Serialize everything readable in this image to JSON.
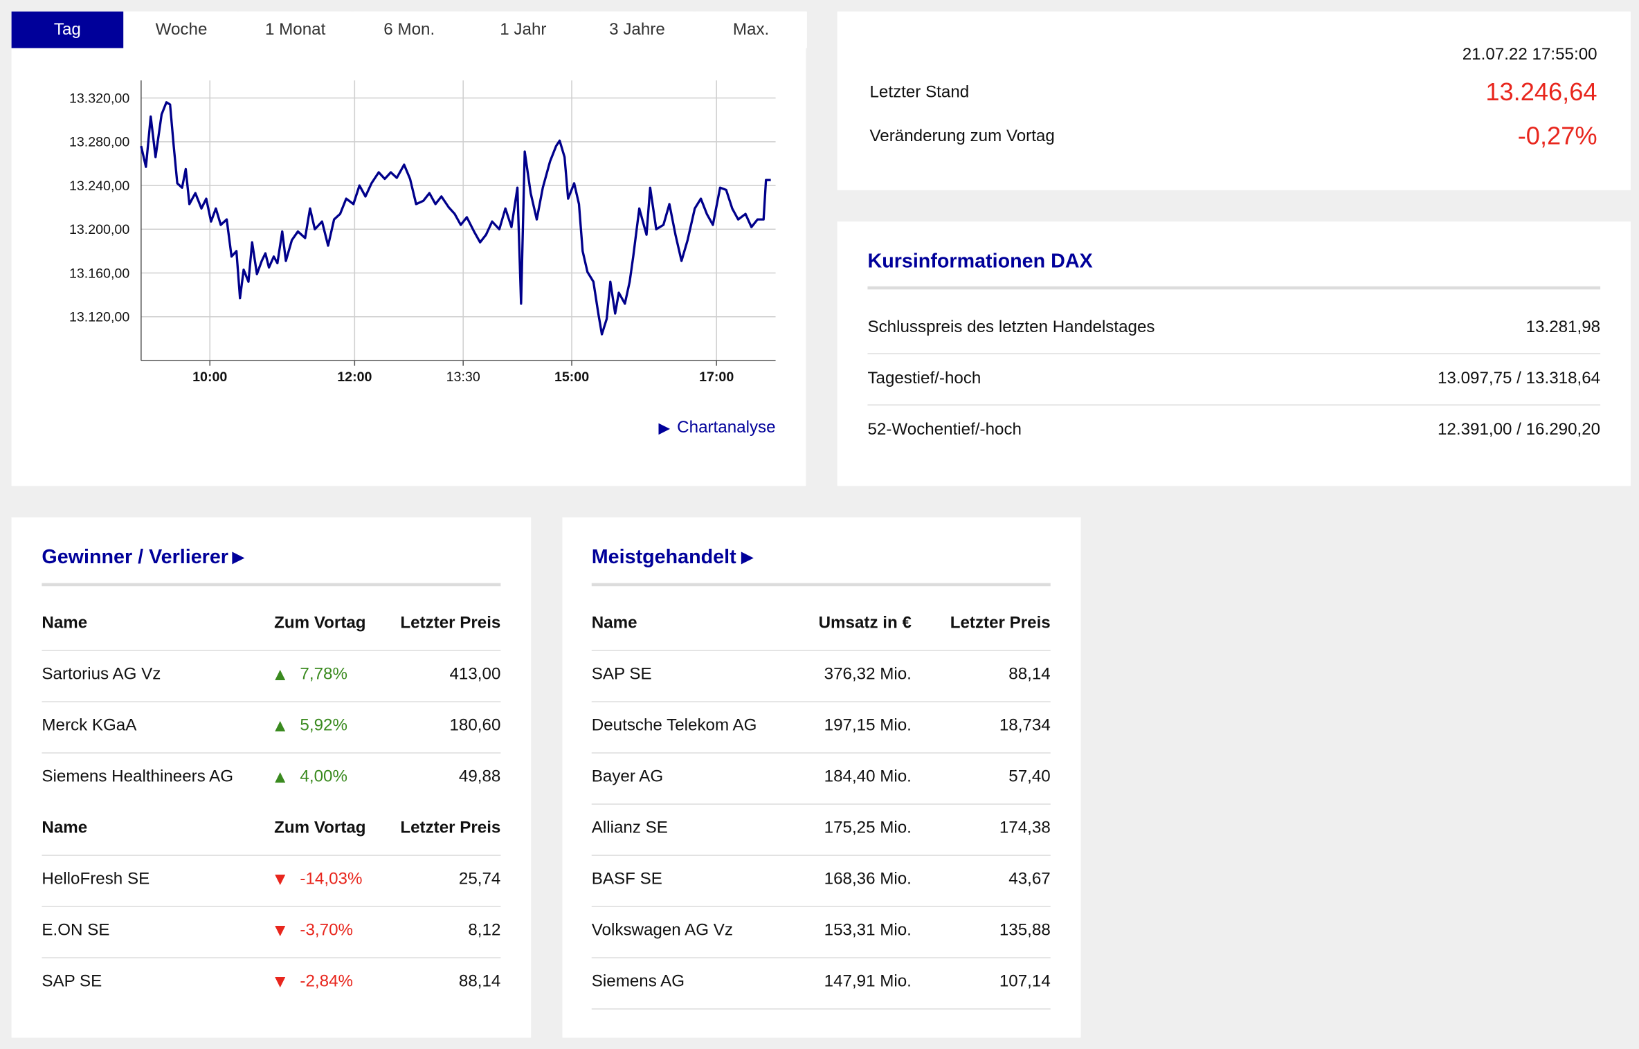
{
  "tabs": [
    "Tag",
    "Woche",
    "1 Monat",
    "6 Mon.",
    "1 Jahr",
    "3 Jahre",
    "Max."
  ],
  "active_tab": 0,
  "chart_data": {
    "type": "line",
    "color": "#00008b",
    "x": [
      543,
      547,
      551,
      555,
      560,
      564,
      567,
      570,
      573,
      577,
      580,
      583,
      588,
      593,
      597,
      601,
      605,
      609,
      614,
      618,
      622,
      625,
      628,
      632,
      635,
      639,
      643,
      646,
      649,
      653,
      656,
      660,
      663,
      668,
      673,
      679,
      683,
      687,
      693,
      698,
      703,
      708,
      713,
      719,
      724,
      729,
      734,
      740,
      745,
      750,
      755,
      761,
      766,
      771,
      777,
      782,
      787,
      792,
      798,
      803,
      808,
      813,
      819,
      824,
      829,
      834,
      840,
      845,
      850,
      855,
      858,
      861,
      866,
      871,
      876,
      882,
      887,
      890,
      894,
      897,
      902,
      906,
      909,
      913,
      918,
      922,
      925,
      929,
      932,
      936,
      939,
      944,
      948,
      951,
      956,
      962,
      965,
      970,
      976,
      981,
      986,
      991,
      996,
      1002,
      1007,
      1012,
      1017,
      1023,
      1028,
      1033,
      1038,
      1044,
      1049,
      1054,
      1059,
      1061,
      1065
    ],
    "values": [
      13276,
      13257,
      13303,
      13266,
      13305,
      13316,
      13314,
      13276,
      13242,
      13238,
      13255,
      13223,
      13233,
      13219,
      13228,
      13207,
      13219,
      13204,
      13209,
      13175,
      13180,
      13137,
      13163,
      13152,
      13188,
      13159,
      13171,
      13178,
      13165,
      13175,
      13169,
      13198,
      13171,
      13190,
      13198,
      13192,
      13219,
      13200,
      13207,
      13185,
      13209,
      13214,
      13228,
      13223,
      13240,
      13230,
      13242,
      13252,
      13246,
      13252,
      13247,
      13259,
      13246,
      13223,
      13226,
      13233,
      13223,
      13230,
      13220,
      13214,
      13204,
      13211,
      13198,
      13188,
      13195,
      13207,
      13200,
      13219,
      13202,
      13238,
      13132,
      13271,
      13233,
      13209,
      13238,
      13262,
      13276,
      13281,
      13266,
      13228,
      13242,
      13223,
      13180,
      13161,
      13152,
      13123,
      13104,
      13118,
      13152,
      13123,
      13142,
      13132,
      13152,
      13175,
      13219,
      13195,
      13238,
      13200,
      13204,
      13223,
      13195,
      13171,
      13190,
      13219,
      13228,
      13214,
      13204,
      13238,
      13236,
      13219,
      13209,
      13214,
      13202,
      13209,
      13209,
      13245,
      13245
    ],
    "xlim": [
      543,
      1069
    ],
    "xticks": [
      {
        "value": 600,
        "label": "10:00"
      },
      {
        "value": 720,
        "label": "12:00"
      },
      {
        "value": 810,
        "label": "13:30"
      },
      {
        "value": 900,
        "label": "15:00"
      },
      {
        "value": 1020,
        "label": "17:00"
      }
    ],
    "ylim": [
      13080,
      13336
    ],
    "yticks": [
      {
        "value": 13120,
        "label": "13.120,00"
      },
      {
        "value": 13160,
        "label": "13.160,00"
      },
      {
        "value": 13200,
        "label": "13.200,00"
      },
      {
        "value": 13240,
        "label": "13.240,00"
      },
      {
        "value": 13280,
        "label": "13.280,00"
      },
      {
        "value": 13320,
        "label": "13.320,00"
      }
    ],
    "grid": true
  },
  "chart_link": "Chartanalyse",
  "quote": {
    "timestamp": "21.07.22 17:55:00",
    "last_label": "Letzter Stand",
    "last_value": "13.246,64",
    "change_label": "Veränderung zum Vortag",
    "change_value": "-0,27%"
  },
  "price_info": {
    "title": "Kursinformationen DAX",
    "rows": [
      [
        "Schlusspreis des letzten Handelstages",
        "13.281,98"
      ],
      [
        "Tagestief/-hoch",
        "13.097,75 / 13.318,64"
      ],
      [
        "52-Wochentief/-hoch",
        "12.391,00 / 16.290,20"
      ]
    ]
  },
  "movers": {
    "title": "Gewinner / Verlierer",
    "gainers": {
      "header": [
        "Name",
        "Zum Vortag",
        "Letzter Preis"
      ],
      "rows": [
        [
          "Sartorius AG Vz",
          "7,78%",
          "413,00"
        ],
        [
          "Merck KGaA",
          "5,92%",
          "180,60"
        ],
        [
          "Siemens Healthineers AG",
          "4,00%",
          "49,88"
        ]
      ]
    },
    "losers": {
      "header": [
        "Name",
        "Zum Vortag",
        "Letzter Preis"
      ],
      "rows": [
        [
          "HelloFresh SE",
          "-14,03%",
          "25,74"
        ],
        [
          "E.ON SE",
          "-3,70%",
          "8,12"
        ],
        [
          "SAP SE",
          "-2,84%",
          "88,14"
        ]
      ]
    }
  },
  "most_traded": {
    "title": "Meistgehandelt",
    "header": [
      "Name",
      "Umsatz in €",
      "Letzter Preis"
    ],
    "rows": [
      [
        "SAP SE",
        "376,32 Mio.",
        "88,14"
      ],
      [
        "Deutsche Telekom AG",
        "197,15 Mio.",
        "18,734"
      ],
      [
        "Bayer AG",
        "184,40 Mio.",
        "57,40"
      ],
      [
        "Allianz SE",
        "175,25 Mio.",
        "174,38"
      ],
      [
        "BASF SE",
        "168,36 Mio.",
        "43,67"
      ],
      [
        "Volkswagen AG Vz",
        "153,31 Mio.",
        "135,88"
      ],
      [
        "Siemens AG",
        "147,91 Mio.",
        "107,14"
      ]
    ]
  }
}
